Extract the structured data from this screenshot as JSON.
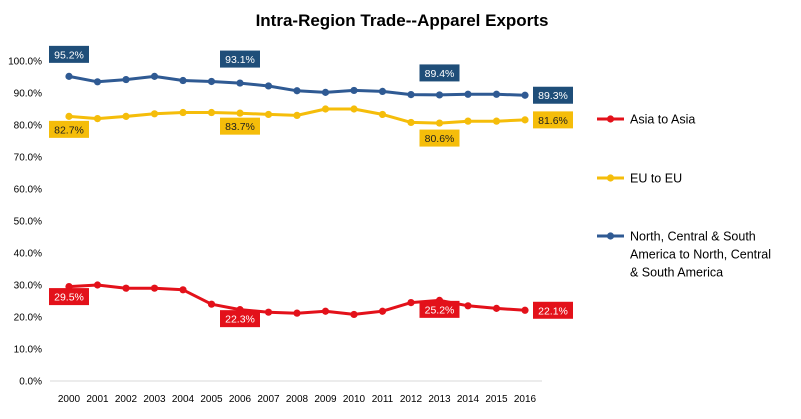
{
  "chart_data": {
    "type": "line",
    "title": "Intra-Region Trade--Apparel Exports",
    "xlabel": "",
    "ylabel": "",
    "ylim": [
      0,
      100
    ],
    "ytick_labels": [
      "0.0%",
      "10.0%",
      "20.0%",
      "30.0%",
      "40.0%",
      "50.0%",
      "60.0%",
      "70.0%",
      "80.0%",
      "90.0%",
      "100.0%"
    ],
    "categories": [
      "2000",
      "2001",
      "2002",
      "2003",
      "2004",
      "2005",
      "2006",
      "2007",
      "2008",
      "2009",
      "2010",
      "2011",
      "2012",
      "2013",
      "2014",
      "2015",
      "2016"
    ],
    "series": [
      {
        "name": "Asia to Asia",
        "color": "#e3111a",
        "values": [
          29.5,
          30.0,
          29.0,
          29.0,
          28.5,
          24.0,
          22.3,
          21.5,
          21.2,
          21.8,
          20.8,
          21.8,
          24.5,
          25.2,
          23.5,
          22.7,
          22.1
        ],
        "labels": [
          {
            "index": 0,
            "text": "29.5%"
          },
          {
            "index": 6,
            "text": "22.3%"
          },
          {
            "index": 13,
            "text": "25.2%"
          },
          {
            "index": 16,
            "text": "22.1%"
          }
        ]
      },
      {
        "name": "EU to EU",
        "color": "#f5bd0a",
        "values": [
          82.7,
          82.0,
          82.7,
          83.5,
          83.9,
          83.9,
          83.7,
          83.3,
          83.0,
          85.0,
          85.0,
          83.3,
          80.8,
          80.6,
          81.2,
          81.2,
          81.6
        ],
        "labels": [
          {
            "index": 0,
            "text": "82.7%"
          },
          {
            "index": 6,
            "text": "83.7%"
          },
          {
            "index": 13,
            "text": "80.6%"
          },
          {
            "index": 16,
            "text": "81.6%"
          }
        ]
      },
      {
        "name": "North, Central & South America to North, Central & South America",
        "legend_lines": [
          "North, Central & South",
          "America to North, Central",
          "& South America"
        ],
        "color": "#2f5a93",
        "label_color": "#1f4e79",
        "values": [
          95.2,
          93.5,
          94.2,
          95.2,
          93.9,
          93.6,
          93.1,
          92.2,
          90.7,
          90.2,
          90.8,
          90.5,
          89.5,
          89.4,
          89.6,
          89.6,
          89.3
        ],
        "labels": [
          {
            "index": 0,
            "text": "95.2%"
          },
          {
            "index": 6,
            "text": "93.1%"
          },
          {
            "index": 13,
            "text": "89.4%"
          },
          {
            "index": 16,
            "text": "89.3%"
          }
        ]
      }
    ],
    "legend_position": "right"
  }
}
